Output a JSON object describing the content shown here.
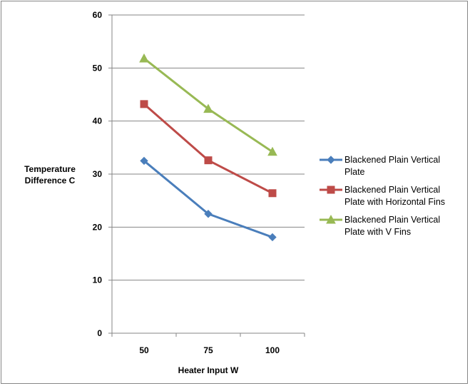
{
  "chart_data": {
    "type": "line",
    "title": "",
    "xlabel": "Heater Input W",
    "ylabel_lines": [
      "Temperature",
      "Difference C"
    ],
    "categories": [
      "50",
      "75",
      "100"
    ],
    "ylim": [
      0,
      60
    ],
    "yticks": [
      0,
      10,
      20,
      30,
      40,
      50,
      60
    ],
    "grid": "horizontal major gridlines",
    "legend_position": "right",
    "series": [
      {
        "name_lines": [
          "Blackened Plain Vertical",
          "Plate"
        ],
        "marker": "diamond",
        "color": "#4A7EBB",
        "values": [
          32.5,
          22.5,
          18.1
        ]
      },
      {
        "name_lines": [
          "Blackened Plain Vertical",
          "Plate with  Horizontal Fins"
        ],
        "marker": "square",
        "color": "#BE4B48",
        "values": [
          43.2,
          32.6,
          26.4
        ]
      },
      {
        "name_lines": [
          "Blackened Plain Vertical",
          "Plate with  V Fins"
        ],
        "marker": "triangle",
        "color": "#98B954",
        "values": [
          51.8,
          42.3,
          34.2
        ]
      }
    ]
  }
}
